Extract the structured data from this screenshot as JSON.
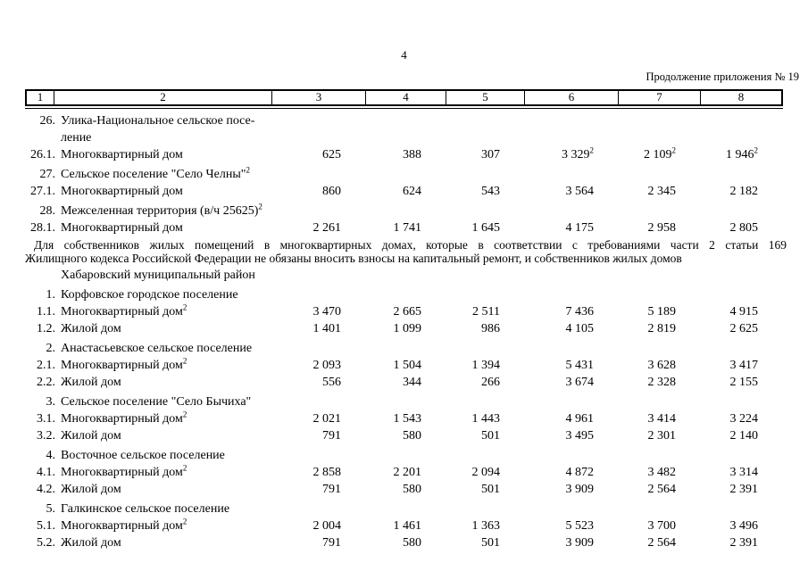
{
  "page": {
    "number": "4",
    "continuation": "Продолжение приложения № 19"
  },
  "colors": {
    "text": "#000000",
    "border": "#000000",
    "background": "#ffffff"
  },
  "table": {
    "header_cols": [
      "1",
      "2",
      "3",
      "4",
      "5",
      "6",
      "7",
      "8"
    ],
    "rows": [
      {
        "type": "section",
        "num": "26.",
        "label": "Улика-Национальное сельское посе-\nление"
      },
      {
        "type": "data",
        "num": "26.1.",
        "label": "Многоквартирный дом",
        "values": [
          "625",
          "388",
          "307",
          {
            "v": "3 329",
            "sup": "2"
          },
          {
            "v": "2 109",
            "sup": "2"
          },
          {
            "v": "1 946",
            "sup": "2"
          }
        ]
      },
      {
        "type": "section",
        "num": "27.",
        "label": "Сельское поселение \"Село Челны\"",
        "label_sup": "2"
      },
      {
        "type": "data",
        "num": "27.1.",
        "label": "Многоквартирный дом",
        "values": [
          "860",
          "624",
          "543",
          "3 564",
          "2 345",
          "2 182"
        ]
      },
      {
        "type": "section",
        "num": "28.",
        "label": "Межселенная территория (в/ч 25625)",
        "label_sup": "2"
      },
      {
        "type": "data",
        "num": "28.1.",
        "label": "Многоквартирный дом",
        "values": [
          "2 261",
          "1 741",
          "1 645",
          "4 175",
          "2 958",
          "2 805"
        ]
      },
      {
        "type": "note",
        "lines": [
          "Для собственников жилых помещений в многоквартирных домах, которые в соответствии с требованиями части 2 статьи 169",
          "Жилищного кодекса Российской Федерации не обязаны вносить взносы на капитальный ремонт, и собственников жилых домов"
        ]
      },
      {
        "type": "subheader",
        "label": "Хабаровский муниципальный район"
      },
      {
        "type": "section",
        "num": "1.",
        "label": "Корфовское городское поселение"
      },
      {
        "type": "data",
        "num": "1.1.",
        "label": "Многоквартирный дом",
        "label_sup": "2",
        "values": [
          "3 470",
          "2 665",
          "2 511",
          "7 436",
          "5 189",
          "4 915"
        ]
      },
      {
        "type": "data",
        "num": "1.2.",
        "label": "Жилой дом",
        "values": [
          "1 401",
          "1 099",
          "986",
          "4 105",
          "2 819",
          "2 625"
        ]
      },
      {
        "type": "section",
        "num": "2.",
        "label": "Анастасьевское сельское поселение"
      },
      {
        "type": "data",
        "num": "2.1.",
        "label": "Многоквартирный дом",
        "label_sup": "2",
        "values": [
          "2 093",
          "1 504",
          "1 394",
          "5 431",
          "3 628",
          "3 417"
        ]
      },
      {
        "type": "data",
        "num": "2.2.",
        "label": "Жилой дом",
        "values": [
          "556",
          "344",
          "266",
          "3 674",
          "2 328",
          "2 155"
        ]
      },
      {
        "type": "section",
        "num": "3.",
        "label": "Сельское поселение \"Село Бычиха\""
      },
      {
        "type": "data",
        "num": "3.1.",
        "label": "Многоквартирный дом",
        "label_sup": "2",
        "values": [
          "2 021",
          "1 543",
          "1 443",
          "4 961",
          "3 414",
          "3 224"
        ]
      },
      {
        "type": "data",
        "num": "3.2.",
        "label": "Жилой дом",
        "values": [
          "791",
          "580",
          "501",
          "3 495",
          "2 301",
          "2 140"
        ]
      },
      {
        "type": "section",
        "num": "4.",
        "label": "Восточное сельское поселение"
      },
      {
        "type": "data",
        "num": "4.1.",
        "label": "Многоквартирный дом",
        "label_sup": "2",
        "values": [
          "2 858",
          "2 201",
          "2 094",
          "4 872",
          "3 482",
          "3 314"
        ]
      },
      {
        "type": "data",
        "num": "4.2.",
        "label": "Жилой дом",
        "values": [
          "791",
          "580",
          "501",
          "3 909",
          "2 564",
          "2 391"
        ]
      },
      {
        "type": "section",
        "num": "5.",
        "label": "Галкинское сельское поселение"
      },
      {
        "type": "data",
        "num": "5.1.",
        "label": "Многоквартирный дом",
        "label_sup": "2",
        "values": [
          "2 004",
          "1 461",
          "1 363",
          "5 523",
          "3 700",
          "3 496"
        ]
      },
      {
        "type": "data",
        "num": "5.2.",
        "label": "Жилой дом",
        "values": [
          "791",
          "580",
          "501",
          "3 909",
          "2 564",
          "2 391"
        ]
      }
    ]
  }
}
